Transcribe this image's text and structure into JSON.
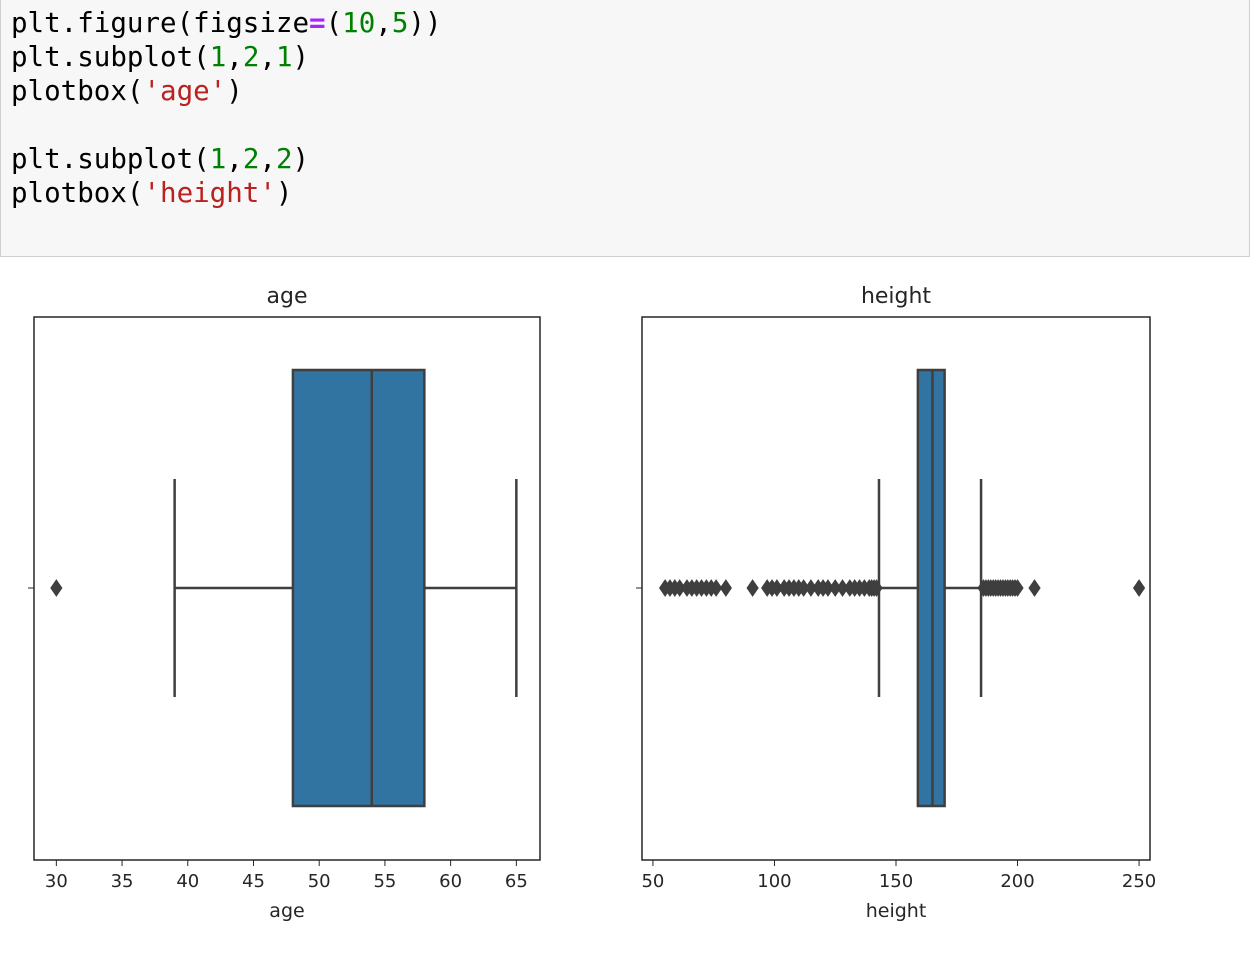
{
  "code_cell": {
    "lines": [
      [
        {
          "t": "plt.figure(figsize",
          "c": ""
        },
        {
          "t": "=",
          "c": "op"
        },
        {
          "t": "(",
          "c": ""
        },
        {
          "t": "10",
          "c": "num"
        },
        {
          "t": ",",
          "c": ""
        },
        {
          "t": "5",
          "c": "num"
        },
        {
          "t": "))",
          "c": ""
        }
      ],
      [
        {
          "t": "plt.subplot(",
          "c": ""
        },
        {
          "t": "1",
          "c": "num"
        },
        {
          "t": ",",
          "c": ""
        },
        {
          "t": "2",
          "c": "num"
        },
        {
          "t": ",",
          "c": ""
        },
        {
          "t": "1",
          "c": "num"
        },
        {
          "t": ")",
          "c": ""
        }
      ],
      [
        {
          "t": "plotbox(",
          "c": ""
        },
        {
          "t": "'age'",
          "c": "str"
        },
        {
          "t": ")",
          "c": ""
        }
      ],
      [],
      [
        {
          "t": "plt.subplot(",
          "c": ""
        },
        {
          "t": "1",
          "c": "num"
        },
        {
          "t": ",",
          "c": ""
        },
        {
          "t": "2",
          "c": "num"
        },
        {
          "t": ",",
          "c": ""
        },
        {
          "t": "2",
          "c": "num"
        },
        {
          "t": ")",
          "c": ""
        }
      ],
      [
        {
          "t": "plotbox(",
          "c": ""
        },
        {
          "t": "'height'",
          "c": "str"
        },
        {
          "t": ")",
          "c": ""
        }
      ]
    ]
  },
  "chart_data": [
    {
      "type": "box",
      "title": "age",
      "xlabel": "age",
      "ylabel": "",
      "xlim": [
        28.3,
        66.8
      ],
      "xticks": [
        30,
        35,
        40,
        45,
        50,
        55,
        60,
        65
      ],
      "whisker_low": 39,
      "q1": 48,
      "median": 54,
      "q3": 58,
      "whisker_high": 65,
      "outliers": [
        30
      ],
      "box_color": "#3274a1",
      "line_color": "#3f3f3f"
    },
    {
      "type": "box",
      "title": "height",
      "xlabel": "height",
      "ylabel": "",
      "xlim": [
        45.5,
        254.5
      ],
      "xticks": [
        50,
        100,
        150,
        200,
        250
      ],
      "whisker_low": 143,
      "q1": 159,
      "median": 165,
      "q3": 170,
      "whisker_high": 185,
      "outliers": [
        55,
        57,
        59,
        61,
        64,
        66,
        68,
        70,
        72,
        74,
        76,
        80,
        91,
        97,
        99,
        101,
        104,
        106,
        108,
        110,
        112,
        115,
        118,
        120,
        122,
        125,
        128,
        131,
        133,
        135,
        137,
        139,
        140,
        141,
        142,
        186,
        187,
        188,
        189,
        190,
        191,
        192,
        193,
        194,
        195,
        196,
        197,
        198,
        199,
        200,
        207,
        250
      ],
      "box_color": "#3274a1",
      "line_color": "#3f3f3f"
    }
  ]
}
